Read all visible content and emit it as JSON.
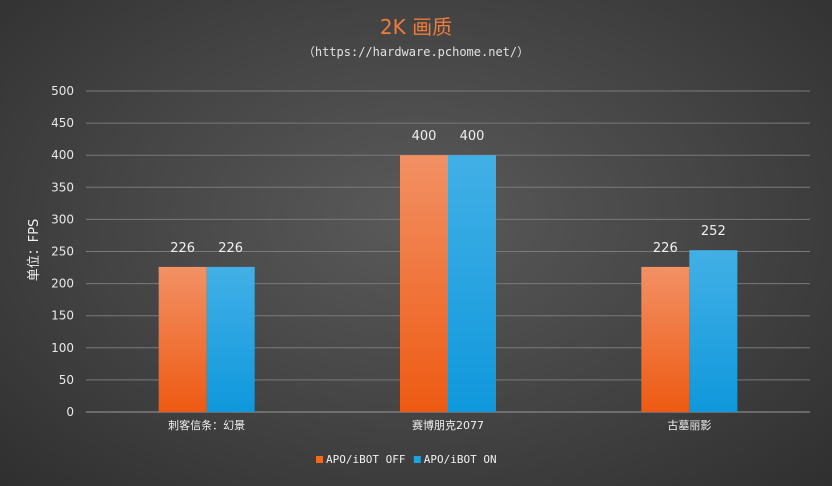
{
  "chart_data": {
    "type": "bar",
    "title": "2K 画质",
    "subtitle": "（https://hardware.pchome.net/）",
    "ylabel": "单位：FPS",
    "xlabel": "",
    "ylim": [
      0,
      500
    ],
    "yticks": [
      0,
      50,
      100,
      150,
      200,
      250,
      300,
      350,
      400,
      450,
      500
    ],
    "categories": [
      "刺客信条：幻景",
      "赛博朋克2077",
      "古墓丽影"
    ],
    "series": [
      {
        "name": "APO/iBOT  OFF",
        "values": [
          226,
          400,
          226
        ],
        "color": "#f26a1b"
      },
      {
        "name": "APO/iBOT ON",
        "values": [
          226,
          400,
          252
        ],
        "color": "#1fa3e0"
      }
    ],
    "grid": true,
    "legend": "bottom-center"
  }
}
